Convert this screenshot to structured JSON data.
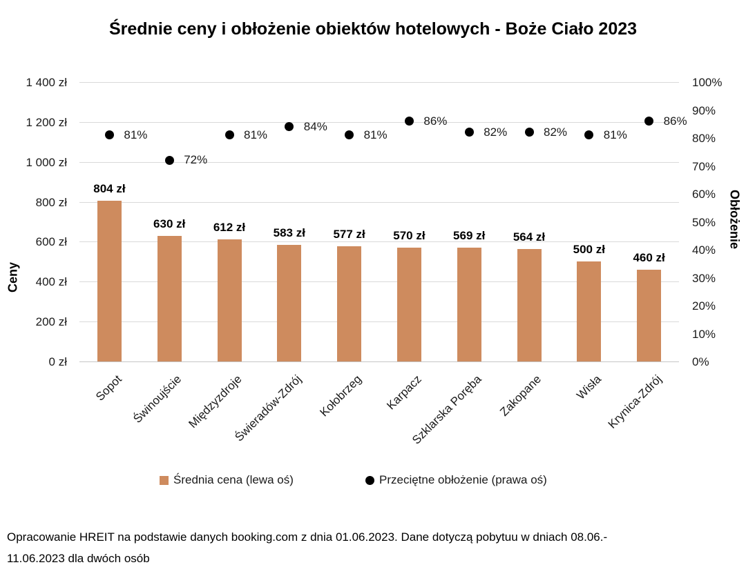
{
  "title": "Średnie ceny i obłożenie obiektów hotelowych - Boże Ciało 2023",
  "chart_data": {
    "type": "combo-bar-scatter",
    "title": "Średnie ceny i obłożenie obiektów hotelowych - Boże Ciało 2023",
    "categories": [
      "Sopot",
      "Świnoujście",
      "Międzyzdroje",
      "Świeradów-Zdrój",
      "Kołobrzeg",
      "Karpacz",
      "Szklarska Poręba",
      "Zakopane",
      "Wisła",
      "Krynica-Zdrój"
    ],
    "series": [
      {
        "name": "Średnia cena (lewa oś)",
        "type": "bar",
        "axis": "left",
        "unit": "zł",
        "values": [
          804,
          630,
          612,
          583,
          577,
          570,
          569,
          564,
          500,
          460
        ],
        "data_labels": [
          "804 zł",
          "630 zł",
          "612 zł",
          "583 zł",
          "577 zł",
          "570 zł",
          "569 zł",
          "564 zł",
          "500 zł",
          "460 zł"
        ],
        "color": "#ce8b5e"
      },
      {
        "name": "Przeciętne obłożenie (prawa oś)",
        "type": "scatter",
        "axis": "right",
        "unit": "%",
        "values": [
          81,
          72,
          81,
          84,
          81,
          86,
          82,
          82,
          81,
          86
        ],
        "data_labels": [
          "81%",
          "72%",
          "81%",
          "84%",
          "81%",
          "86%",
          "82%",
          "82%",
          "81%",
          "86%"
        ],
        "color": "#000000"
      }
    ],
    "left_axis": {
      "title": "Ceny",
      "min": 0,
      "max": 1400,
      "tick_step": 200,
      "tick_labels": [
        "0 zł",
        "200 zł",
        "400 zł",
        "600 zł",
        "800 zł",
        "1 000 zł",
        "1 200 zł",
        "1 400 zł"
      ]
    },
    "right_axis": {
      "title": "Obłożenie",
      "min": 0,
      "max": 100,
      "tick_step": 10,
      "tick_labels": [
        "0%",
        "10%",
        "20%",
        "30%",
        "40%",
        "50%",
        "60%",
        "70%",
        "80%",
        "90%",
        "100%"
      ]
    },
    "grid": "horizontal price gridlines every 200 zł",
    "legend_position": "bottom"
  },
  "legend": {
    "price_label": "Średnia cena (lewa oś)",
    "occupancy_label": "Przeciętne obłożenie (prawa oś)"
  },
  "colors": {
    "bar": "#ce8b5e",
    "dot": "#000000",
    "gridline": "#d9d9d9",
    "text": "#1a1a1a"
  },
  "footer": {
    "line1": "Opracowanie HREIT na podstawie danych booking.com z dnia 01.06.2023. Dane dotyczą pobytuu w dniach 08.06.-",
    "line2": "11.06.2023 dla dwóch osób"
  }
}
